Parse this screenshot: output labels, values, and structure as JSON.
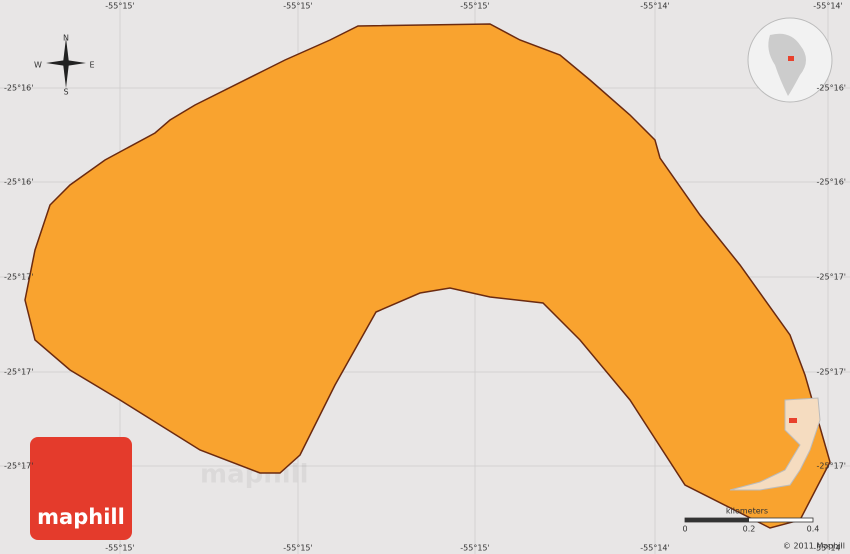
{
  "top_labels": [
    "-55°15'",
    "-55°15'",
    "-55°15'",
    "-55°14'",
    "-55°14'"
  ],
  "bottom_labels": [
    "-55°15'",
    "-55°15'",
    "-55°15'",
    "-55°14'",
    "-55°14'"
  ],
  "left_labels": [
    "-25°16'",
    "-25°16'",
    "-25°17'",
    "-25°17'",
    "-25°17'"
  ],
  "right_labels": [
    "-25°16'",
    "-25°16'",
    "-25°17'",
    "-25°17'",
    "-25°17'"
  ],
  "compass": {
    "n": "N",
    "s": "S",
    "e": "E",
    "w": "W"
  },
  "logo": "maphill",
  "watermarks": [
    "maphill",
    "maphill",
    "maphill",
    "maphill",
    "maphill",
    "maphill"
  ],
  "scale": {
    "title": "kilometers",
    "ticks": [
      "0",
      "0.2",
      "0.4"
    ]
  },
  "copyright": "© 2011 Maphill"
}
